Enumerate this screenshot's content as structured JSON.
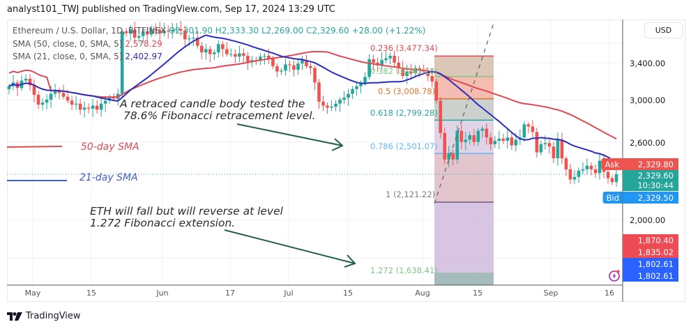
{
  "header": {
    "published_by": "analyst101_TWJ published on TradingView.com, Sep 17, 2024 13:29 UTC"
  },
  "legend": {
    "symbol": "Ethereum / U.S. Dollar, 1D, BITFINEX",
    "open": "O2,301.90",
    "high": "H2,333.30",
    "low": "L2,269.00",
    "close": "C2,329.60",
    "change": "+28.00 (+1.22%)",
    "sma50_label": "SMA (50, close, 0, SMA, 5)",
    "sma50_value": "2,578.29",
    "sma21_label": "SMA (21, close, 0, SMA, 5)",
    "sma21_value": "2,402.97"
  },
  "price_axis": {
    "currency": "USD",
    "ticks": [
      "3,400.00",
      "3,000.00",
      "2,600.00",
      "2,000.00"
    ],
    "ask_label": "Ask",
    "ask_value": "2,329.80",
    "last_value": "2,329.60",
    "countdown": "10:30:44",
    "bid_label": "Bid",
    "bid_value": "2,329.50",
    "markers": [
      "1,870.40",
      "1,835.02",
      "1,802.61",
      "1,802.61"
    ]
  },
  "time_axis": {
    "ticks": [
      "May",
      "15",
      "Jun",
      "17",
      "Jul",
      "15",
      "Aug",
      "15",
      "Sep",
      "16"
    ]
  },
  "annotations": {
    "note1_line1": "A retraced candle body tested the",
    "note1_line2": "78.6% Fibonacci retracement level.",
    "note2_line1": "ETH  will fall but will reverse at level",
    "note2_line2": "1.272 Fibonacci extension.",
    "sma50_tag": "50-day SMA",
    "sma21_tag": "21-day SMA"
  },
  "fibonacci": {
    "levels": [
      {
        "label": "0.236 (3,477.34)",
        "color": "#e04850"
      },
      {
        "label": "0.382 (3,245.18)",
        "color": "#81c784"
      },
      {
        "label": "0.5 (3,008.78)",
        "color": "#e0752d"
      },
      {
        "label": "0.618 (2,799.28)",
        "color": "#26a69a"
      },
      {
        "label": "0.786 (2,501.07)",
        "color": "#64b5f6"
      },
      {
        "label": "1 (2,121.22)",
        "color": "#787b86"
      },
      {
        "label": "1.272 (1,638.41)",
        "color": "#81c784"
      }
    ]
  },
  "colors": {
    "up": "#26a69a",
    "down": "#ef5350",
    "sma50": "#e04850",
    "sma21": "#2b2bc0",
    "ask": "#ef5350",
    "bid": "#2196f3",
    "last": "#26a69a",
    "marker_red": "#ef4b55",
    "marker_blue": "#2962ff"
  },
  "footer": {
    "brand": "TradingView"
  },
  "chart_data": {
    "type": "candlestick",
    "title": "Ethereum / U.S. Dollar, 1D, BITFINEX",
    "xlabel": "",
    "ylabel": "USD",
    "y_scale": "log",
    "ylim": [
      1600,
      3900
    ],
    "x_ticks": [
      "May",
      "15",
      "Jun",
      "17",
      "Jul",
      "15",
      "Aug",
      "15",
      "Sep",
      "16"
    ],
    "y_ticks": [
      3400,
      3000,
      2600,
      2000
    ],
    "last_bar": {
      "open": 2301.9,
      "high": 2333.3,
      "low": 2269.0,
      "close": 2329.6,
      "change": 28.0,
      "change_pct": 1.22
    },
    "series": [
      {
        "name": "SMA 50",
        "last_value": 2578.29
      },
      {
        "name": "SMA 21",
        "last_value": 2402.97
      }
    ],
    "fib_retracement": {
      "0.236": 3477.34,
      "0.382": 3245.18,
      "0.5": 3008.78,
      "0.618": 2799.28,
      "0.786": 2501.07,
      "1": 2121.22,
      "1.272": 1638.41
    },
    "price_markers": {
      "ask": 2329.8,
      "last": 2329.6,
      "bid": 2329.5,
      "others": [
        1870.4,
        1835.02,
        1802.61,
        1802.61
      ]
    },
    "approx_closes": [
      3140,
      3180,
      3120,
      3200,
      3220,
      3150,
      3050,
      2950,
      2970,
      3000,
      3060,
      3090,
      3070,
      3030,
      2990,
      2950,
      2960,
      2900,
      2920,
      2910,
      2940,
      2900,
      2960,
      2990,
      3020,
      3010,
      3060,
      3780,
      3760,
      3800,
      3700,
      3720,
      3780,
      3740,
      3810,
      3800,
      3760,
      3790,
      3780,
      3800,
      3810,
      3790,
      3680,
      3690,
      3700,
      3600,
      3520,
      3560,
      3500,
      3520,
      3620,
      3560,
      3500,
      3500,
      3470,
      3510,
      3480,
      3410,
      3430,
      3420,
      3470,
      3480,
      3450,
      3360,
      3300,
      3310,
      3380,
      3370,
      3320,
      3390,
      3430,
      3360,
      3340,
      3180,
      2980,
      2940,
      2920,
      2930,
      2960,
      3000,
      3020,
      3060,
      3110,
      3140,
      3170,
      3240,
      3440,
      3400,
      3370,
      3430,
      3450,
      3480,
      3400,
      3340,
      3250,
      3300,
      3280,
      3340,
      3320,
      3300,
      3250,
      3190,
      2990,
      2680,
      2450,
      2500,
      2450,
      2700,
      2600,
      2620,
      2660,
      2600,
      2700,
      2720,
      2640,
      2580,
      2610,
      2630,
      2610,
      2640,
      2570,
      2620,
      2640,
      2760,
      2740,
      2690,
      2510,
      2580,
      2590,
      2560,
      2460,
      2620,
      2460,
      2370,
      2290,
      2310,
      2360,
      2370,
      2400,
      2370,
      2340,
      2440,
      2350,
      2300,
      2270,
      2330
    ]
  }
}
